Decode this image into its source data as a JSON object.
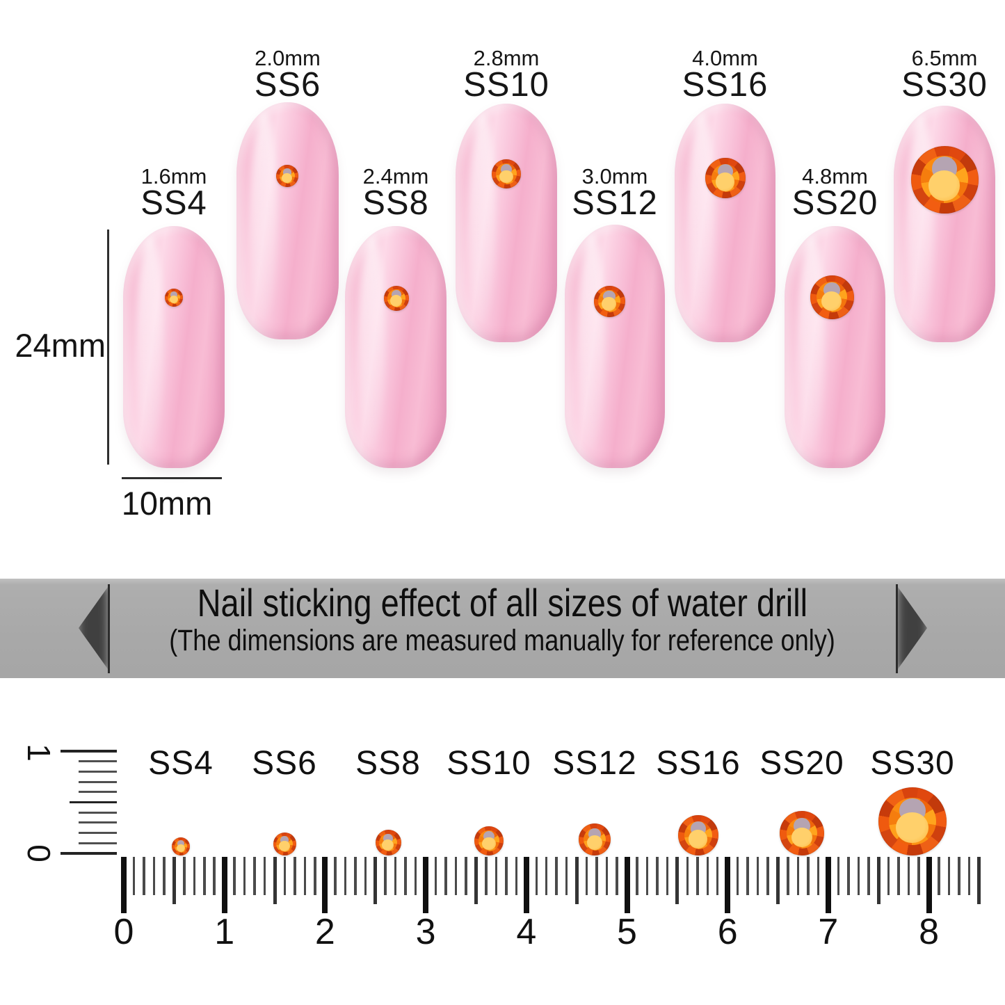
{
  "nails": [
    {
      "size_mm": "1.6mm",
      "name": "SS4"
    },
    {
      "size_mm": "2.0mm",
      "name": "SS6"
    },
    {
      "size_mm": "2.4mm",
      "name": "SS8"
    },
    {
      "size_mm": "2.8mm",
      "name": "SS10"
    },
    {
      "size_mm": "3.0mm",
      "name": "SS12"
    },
    {
      "size_mm": "4.0mm",
      "name": "SS16"
    },
    {
      "size_mm": "4.8mm",
      "name": "SS20"
    },
    {
      "size_mm": "6.5mm",
      "name": "SS30"
    }
  ],
  "dimensions": {
    "nail_length": "24mm",
    "nail_width": "10mm"
  },
  "banner": {
    "title": "Nail sticking effect of all sizes of water drill",
    "subtitle": "(The dimensions are measured manually for reference only)"
  },
  "ruler": {
    "vertical_labels": [
      "1",
      "0"
    ],
    "numbers": [
      "0",
      "1",
      "2",
      "3",
      "4",
      "5",
      "6",
      "7",
      "8"
    ],
    "stone_labels": [
      "SS4",
      "SS6",
      "SS8",
      "SS10",
      "SS12",
      "SS16",
      "SS20",
      "SS30"
    ]
  },
  "colors": {
    "nail_pink": "#f7b4ce",
    "stone_orange": "#e8520f",
    "stone_core_yellow": "#ffc95e",
    "banner_gray": "#a8a8a8",
    "text_black": "#111111"
  }
}
